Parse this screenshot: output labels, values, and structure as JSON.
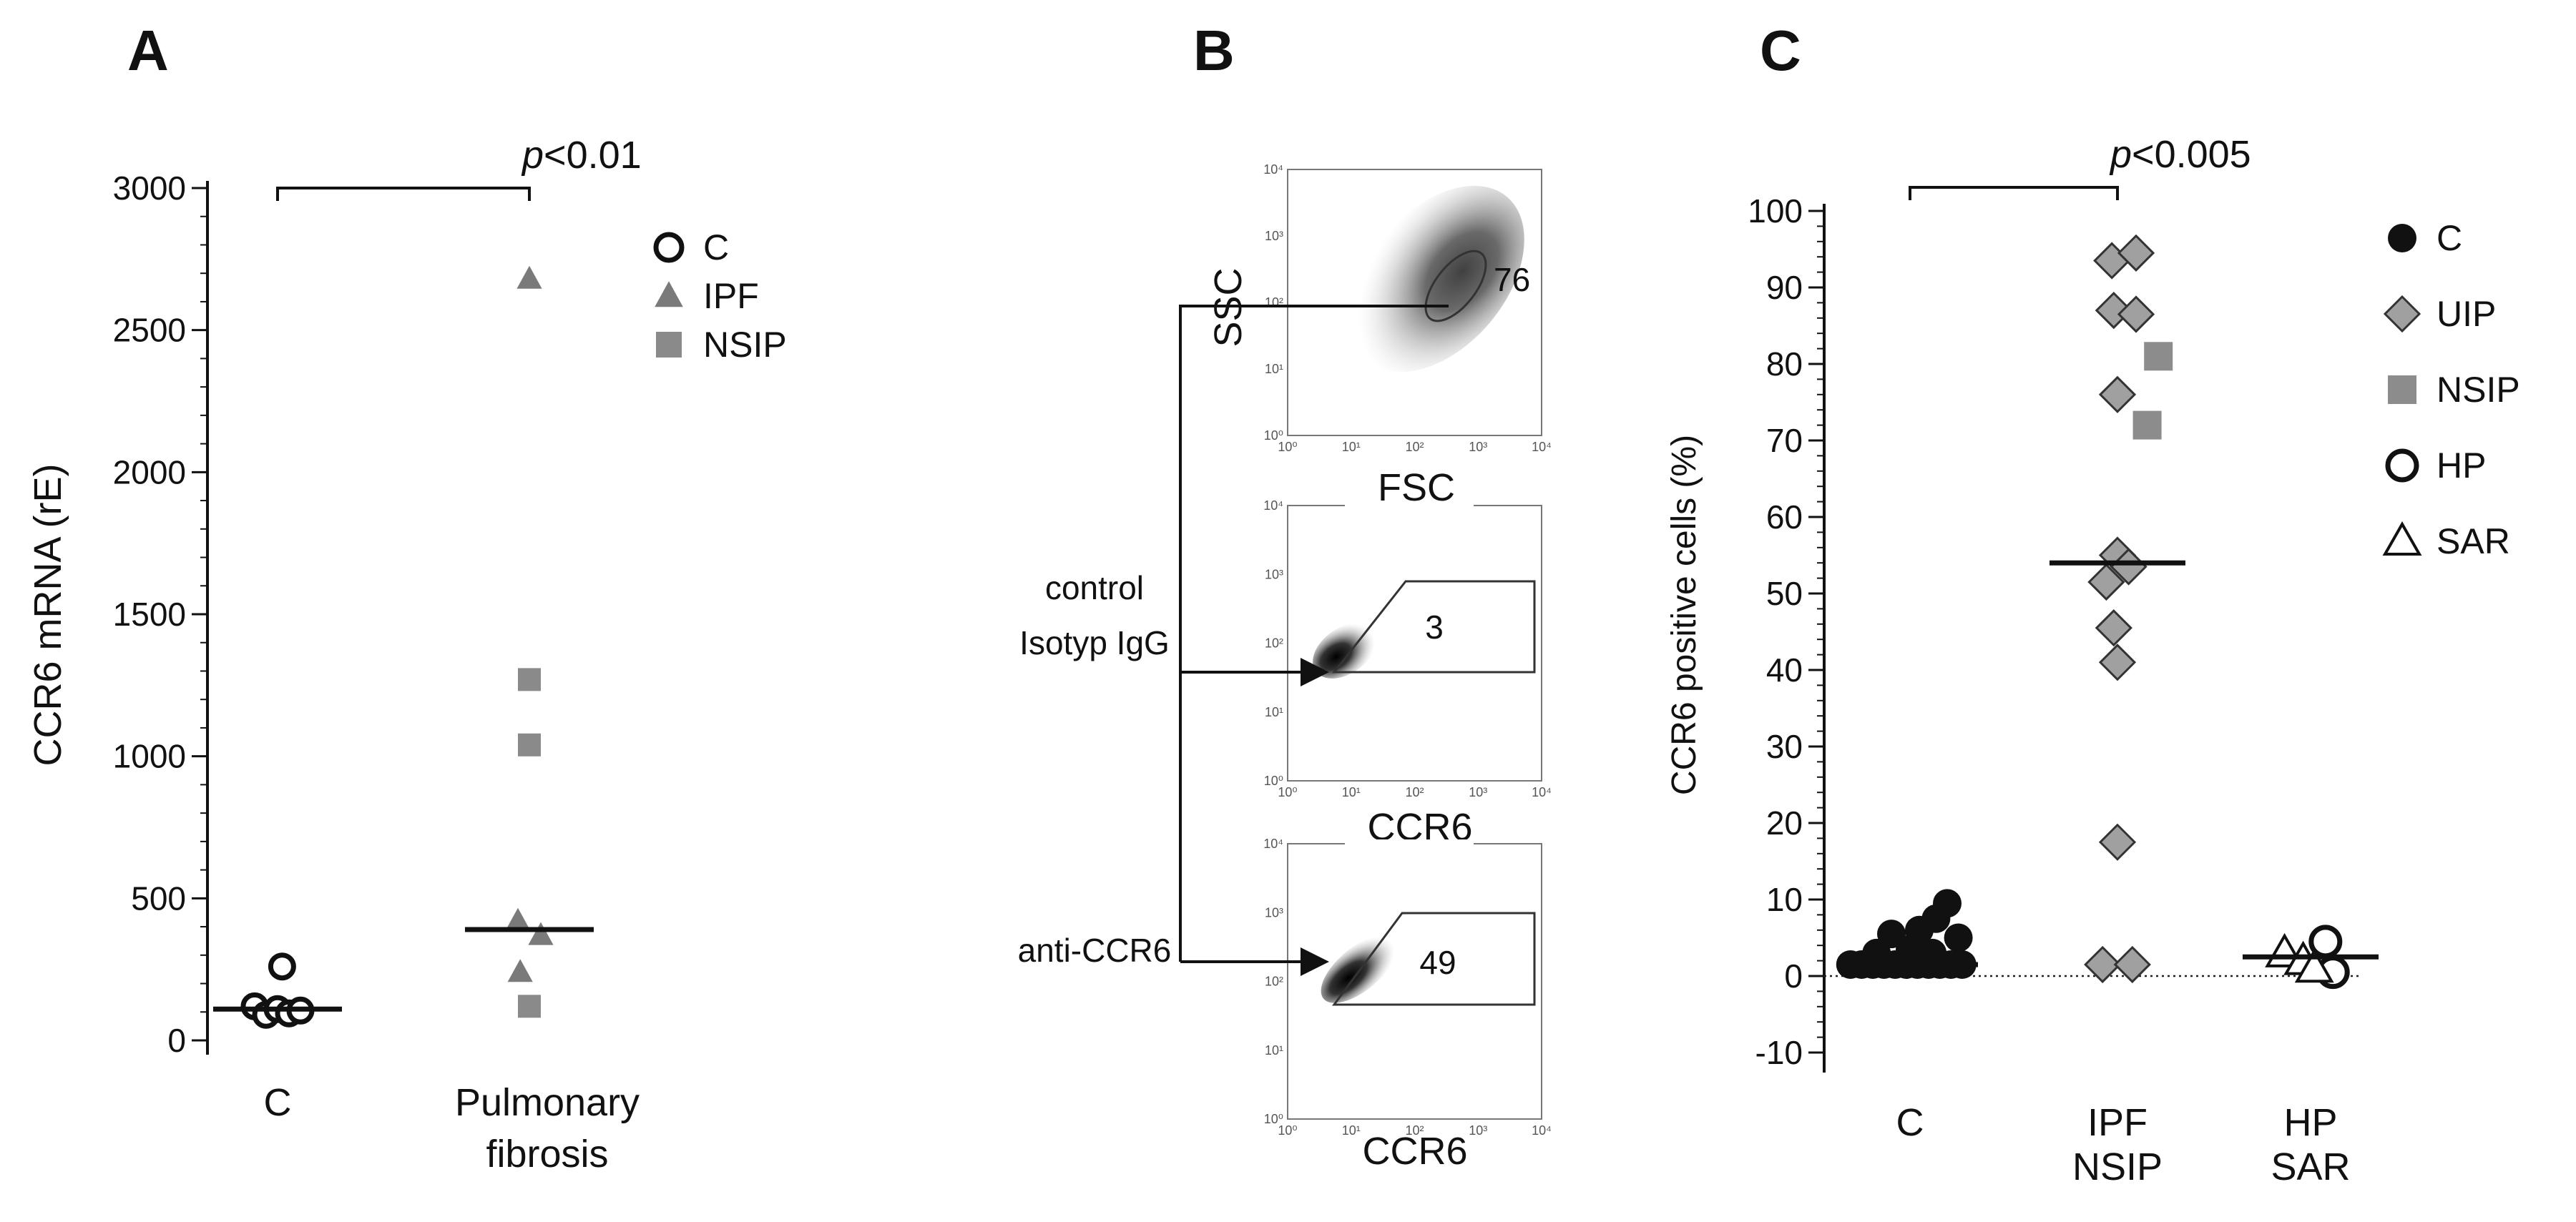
{
  "panels": {
    "A": {
      "label": "A"
    },
    "B": {
      "label": "B"
    },
    "C": {
      "label": "C"
    }
  },
  "chart_data": [
    {
      "panel": "A",
      "type": "scatter",
      "ylabel": "CCR6 mRNA (rE)",
      "ylim": [
        0,
        3000
      ],
      "yticks": [
        "0",
        "500",
        "1000",
        "1500",
        "2000",
        "2500",
        "3000"
      ],
      "ytick_values": [
        0,
        500,
        1000,
        1500,
        2000,
        2500,
        3000
      ],
      "categories": [
        "C",
        "Pulmonary\nfibrosis"
      ],
      "category_lines": [
        "C",
        "Pulmonary",
        "fibrosis"
      ],
      "significance": {
        "from": 0,
        "to": 1,
        "text_italic": "p",
        "text": "<0.01"
      },
      "legend": [
        {
          "name": "C",
          "marker": "circle-open",
          "color": "#111111"
        },
        {
          "name": "IPF",
          "marker": "triangle",
          "color": "#7a7a7a"
        },
        {
          "name": "NSIP",
          "marker": "square",
          "color": "#8a8a8a"
        }
      ],
      "series": [
        {
          "name": "C",
          "category": 0,
          "points": [
            [
              -0.1,
              120
            ],
            [
              -0.05,
              90
            ],
            [
              0.0,
              110
            ],
            [
              0.05,
              95
            ],
            [
              0.1,
              105
            ],
            [
              0.02,
              260
            ]
          ]
        },
        {
          "name": "IPF",
          "category": 1,
          "points": [
            [
              0.0,
              2680
            ],
            [
              -0.05,
              420
            ],
            [
              0.05,
              370
            ],
            [
              -0.04,
              240
            ]
          ]
        },
        {
          "name": "NSIP",
          "category": 1,
          "points": [
            [
              0.0,
              1270
            ],
            [
              0.0,
              1040
            ],
            [
              0.0,
              120
            ]
          ]
        }
      ],
      "medians": [
        {
          "category": 0,
          "value": 110
        },
        {
          "category": 1,
          "value": 390
        }
      ]
    },
    {
      "panel": "B",
      "type": "flow-cytometry",
      "plots": [
        {
          "name": "scatter-gate",
          "xlabel": "FSC",
          "ylabel": "SSC",
          "gate_value": "76"
        },
        {
          "name": "isotype",
          "xlabel": "CCR6",
          "ylabel": "",
          "gate_value": "3"
        },
        {
          "name": "anti-ccr6",
          "xlabel": "CCR6",
          "ylabel": "",
          "gate_value": "49"
        }
      ],
      "arrow_labels": [
        "control\nIsotyp IgG",
        "anti-CCR6"
      ],
      "arrow_label_lines": [
        [
          "control",
          "Isotyp IgG"
        ],
        [
          "anti-CCR6"
        ]
      ],
      "axis_ticks": [
        "10⁰",
        "10¹",
        "10²",
        "10³",
        "10⁴"
      ]
    },
    {
      "panel": "C",
      "type": "scatter",
      "ylabel": "CCR6 positive cells (%)",
      "ylim": [
        -10,
        100
      ],
      "yticks": [
        "-10",
        "0",
        "10",
        "20",
        "30",
        "40",
        "50",
        "60",
        "70",
        "80",
        "90",
        "100"
      ],
      "ytick_values": [
        -10,
        0,
        10,
        20,
        30,
        40,
        50,
        60,
        70,
        80,
        90,
        100
      ],
      "categories": [
        "C",
        "IPF\nNSIP",
        "HP\nSAR"
      ],
      "category_lines": [
        [
          "C"
        ],
        [
          "IPF",
          "NSIP"
        ],
        [
          "HP",
          "SAR"
        ]
      ],
      "significance": {
        "from": 0,
        "to": 1,
        "text_italic": "p",
        "text": "<0.005"
      },
      "legend": [
        {
          "name": "C",
          "marker": "circle-filled",
          "color": "#111111"
        },
        {
          "name": "UIP",
          "marker": "diamond",
          "color": "#a0a0a0"
        },
        {
          "name": "NSIP",
          "marker": "square",
          "color": "#8c8c8c"
        },
        {
          "name": "HP",
          "marker": "circle-open",
          "color": "#111111"
        },
        {
          "name": "SAR",
          "marker": "triangle-open",
          "color": "#111111"
        }
      ],
      "series": [
        {
          "name": "C",
          "category": 0,
          "points": [
            [
              -0.32,
              1.5
            ],
            [
              -0.26,
              1.5
            ],
            [
              -0.2,
              1.5
            ],
            [
              -0.14,
              1.5
            ],
            [
              -0.08,
              1.5
            ],
            [
              -0.02,
              1.5
            ],
            [
              0.04,
              1.5
            ],
            [
              0.1,
              1.5
            ],
            [
              0.16,
              1.5
            ],
            [
              0.22,
              1.5
            ],
            [
              0.28,
              1.5
            ],
            [
              -0.18,
              3
            ],
            [
              0.0,
              3.5
            ],
            [
              0.12,
              3
            ],
            [
              -0.1,
              5.5
            ],
            [
              0.05,
              6
            ],
            [
              0.14,
              7.5
            ],
            [
              0.2,
              9.5
            ],
            [
              0.26,
              5
            ]
          ]
        },
        {
          "name": "UIP",
          "category": 1,
          "points": [
            [
              -0.03,
              93.5
            ],
            [
              0.1,
              94.5
            ],
            [
              -0.02,
              87
            ],
            [
              0.1,
              86.5
            ],
            [
              0.0,
              76
            ],
            [
              0.0,
              55
            ],
            [
              -0.06,
              51.5
            ],
            [
              0.06,
              53.5
            ],
            [
              -0.02,
              45.5
            ],
            [
              0.0,
              41
            ],
            [
              0.0,
              17.5
            ],
            [
              -0.08,
              1.5
            ],
            [
              0.08,
              1.5
            ]
          ]
        },
        {
          "name": "NSIP",
          "category": 1,
          "points": [
            [
              0.22,
              81
            ],
            [
              0.16,
              72
            ]
          ]
        },
        {
          "name": "HP",
          "category": 2,
          "points": [
            [
              0.08,
              4.5
            ],
            [
              0.12,
              0.5
            ]
          ]
        },
        {
          "name": "SAR",
          "category": 2,
          "points": [
            [
              -0.14,
              3
            ],
            [
              -0.04,
              2
            ],
            [
              0.02,
              1
            ]
          ]
        }
      ],
      "medians": [
        {
          "category": 0,
          "value": 1.5
        },
        {
          "category": 1,
          "value": 54
        },
        {
          "category": 2,
          "value": 2.5
        }
      ]
    }
  ]
}
